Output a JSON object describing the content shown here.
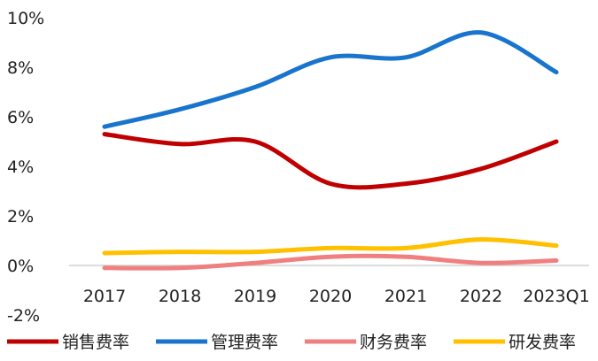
{
  "chart_data": {
    "type": "line",
    "categories": [
      "2017",
      "2018",
      "2019",
      "2020",
      "2021",
      "2022",
      "2023Q1"
    ],
    "y_ticks": [
      "-2%",
      "0%",
      "2%",
      "4%",
      "6%",
      "8%",
      "10%"
    ],
    "ylim": [
      -2,
      10
    ],
    "grid": false,
    "legend_position": "bottom",
    "series": [
      {
        "name": "销售费率",
        "color": "#C00000",
        "values": [
          5.3,
          4.9,
          5.0,
          3.3,
          3.3,
          3.9,
          5.0
        ]
      },
      {
        "name": "管理费率",
        "color": "#1874CD",
        "values": [
          5.6,
          6.3,
          7.2,
          8.4,
          8.4,
          9.4,
          7.8
        ]
      },
      {
        "name": "财务费率",
        "color": "#F08080",
        "values": [
          -0.1,
          -0.1,
          0.1,
          0.35,
          0.35,
          0.1,
          0.2
        ]
      },
      {
        "name": "研发费率",
        "color": "#FFC000",
        "values": [
          0.5,
          0.55,
          0.55,
          0.7,
          0.7,
          1.05,
          0.8
        ]
      }
    ]
  }
}
